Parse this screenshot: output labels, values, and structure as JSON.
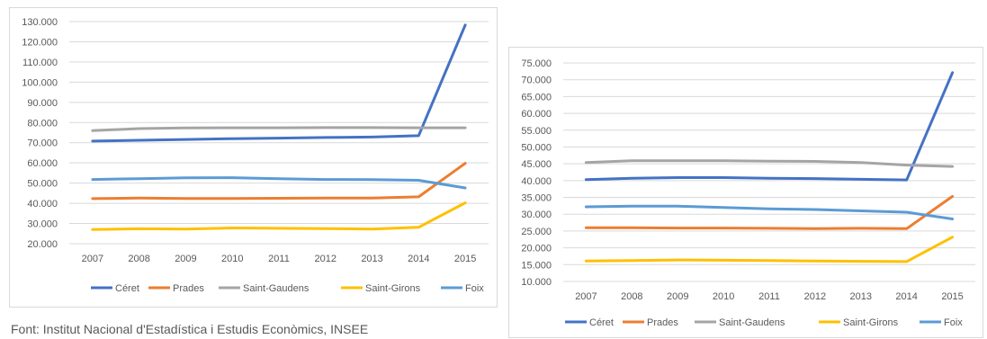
{
  "source_note": "Font: Institut Nacional d'Estadística i Estudis Econòmics, INSEE",
  "colors": {
    "Céret": "#4472c4",
    "Prades": "#ed7d31",
    "Saint-Gaudens": "#a5a5a5",
    "Saint-Girons": "#ffc000",
    "Foix": "#5b9bd5",
    "grid": "#d9d9d9",
    "axis_text": "#595959"
  },
  "chart_data": [
    {
      "type": "line",
      "title": "",
      "xlabel": "",
      "ylabel": "",
      "x": [
        "2007",
        "2008",
        "2009",
        "2010",
        "2011",
        "2012",
        "2013",
        "2014",
        "2015"
      ],
      "ylim": [
        20000,
        130000
      ],
      "y_ticks": [
        "20.000",
        "30.000",
        "40.000",
        "50.000",
        "60.000",
        "70.000",
        "80.000",
        "90.000",
        "100.000",
        "110.000",
        "120.000",
        "130.000"
      ],
      "grid": true,
      "legend_position": "bottom",
      "series": [
        {
          "name": "Céret",
          "values": [
            70800,
            71200,
            71600,
            72000,
            72300,
            72600,
            72800,
            73500,
            128300
          ]
        },
        {
          "name": "Prades",
          "values": [
            42300,
            42600,
            42400,
            42400,
            42500,
            42600,
            42600,
            43200,
            59800
          ]
        },
        {
          "name": "Saint-Gaudens",
          "values": [
            76000,
            77000,
            77300,
            77400,
            77400,
            77500,
            77500,
            77400,
            77400
          ]
        },
        {
          "name": "Saint-Girons",
          "values": [
            27000,
            27400,
            27200,
            27800,
            27600,
            27500,
            27200,
            28100,
            40200
          ]
        },
        {
          "name": "Foix",
          "values": [
            51800,
            52200,
            52600,
            52700,
            52200,
            51800,
            51700,
            51400,
            47600
          ]
        }
      ]
    },
    {
      "type": "line",
      "title": "",
      "xlabel": "",
      "ylabel": "",
      "x": [
        "2007",
        "2008",
        "2009",
        "2010",
        "2011",
        "2012",
        "2013",
        "2014",
        "2015"
      ],
      "ylim": [
        10000,
        75000
      ],
      "y_ticks": [
        "10.000",
        "15.000",
        "20.000",
        "25.000",
        "30.000",
        "35.000",
        "40.000",
        "45.000",
        "50.000",
        "55.000",
        "60.000",
        "65.000",
        "70.000",
        "75.000"
      ],
      "grid": true,
      "legend_position": "bottom",
      "series": [
        {
          "name": "Céret",
          "values": [
            40300,
            40700,
            40900,
            40900,
            40700,
            40600,
            40400,
            40200,
            72100
          ]
        },
        {
          "name": "Prades",
          "values": [
            26000,
            26000,
            25900,
            25900,
            25800,
            25700,
            25800,
            25700,
            35300
          ]
        },
        {
          "name": "Saint-Gaudens",
          "values": [
            45400,
            45900,
            45900,
            45900,
            45800,
            45700,
            45400,
            44600,
            44200
          ]
        },
        {
          "name": "Saint-Girons",
          "values": [
            16100,
            16200,
            16400,
            16300,
            16200,
            16100,
            16000,
            15900,
            23200
          ]
        },
        {
          "name": "Foix",
          "values": [
            32200,
            32400,
            32400,
            32000,
            31600,
            31400,
            31000,
            30600,
            28600
          ]
        }
      ]
    }
  ]
}
